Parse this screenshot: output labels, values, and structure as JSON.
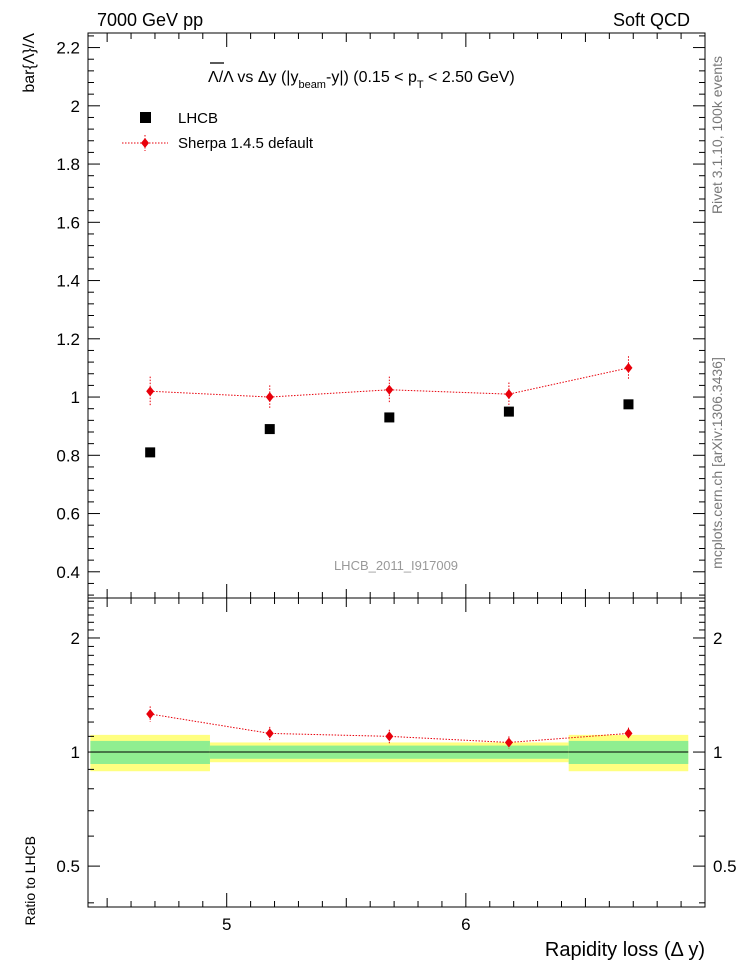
{
  "header": {
    "left": "7000 GeV pp",
    "right": "Soft QCD"
  },
  "side_labels": {
    "rivet": "Rivet 3.1.10,  100k events",
    "mcplots": "mcplots.cern.ch [arXiv:1306.3436]"
  },
  "watermark": "LHCB_2011_I917009",
  "title": {
    "prefix": "Λ/Λ vs Δy (|y",
    "sub1": "beam",
    "mid": "-y|) (0.15 < p",
    "sub2": "T",
    "suffix": " < 2.50 GeV)"
  },
  "colors": {
    "data": "#000000",
    "mc": "#e8000b",
    "band_inner": "#90ee90",
    "band_outer": "#ffff80"
  },
  "chart_data": [
    {
      "type": "scatter",
      "panel": "main",
      "ylabel": "bar{Λ}/Λ",
      "xlabel": "",
      "xlim": [
        4.42,
        7.0
      ],
      "ylim": [
        0.31,
        2.25
      ],
      "yticks": [
        0.4,
        0.6,
        0.8,
        1.0,
        1.2,
        1.4,
        1.6,
        1.8,
        2.0,
        2.2
      ],
      "yticklabels": [
        "0.4",
        "0.6",
        "0.8",
        "1",
        "1.2",
        "1.4",
        "1.6",
        "1.8",
        "2",
        "2.2"
      ],
      "legend_position": "top-left",
      "series": [
        {
          "name": "LHCB",
          "x": [
            4.68,
            5.18,
            5.68,
            6.18,
            6.68
          ],
          "y": [
            0.81,
            0.89,
            0.93,
            0.95,
            0.975
          ],
          "yerr": [
            0.01,
            0.01,
            0.01,
            0.01,
            0.01
          ],
          "marker": "square"
        },
        {
          "name": "Sherpa 1.4.5 default",
          "x": [
            4.68,
            5.18,
            5.68,
            6.18,
            6.68
          ],
          "y": [
            1.02,
            1.0,
            1.025,
            1.01,
            1.1
          ],
          "yerr": [
            0.05,
            0.04,
            0.045,
            0.04,
            0.04
          ],
          "marker": "diamond"
        }
      ]
    },
    {
      "type": "scatter",
      "panel": "ratio",
      "ylabel": "Ratio to LHCB",
      "xlabel": "Rapidity loss (Δ y)",
      "xlim": [
        4.42,
        7.0
      ],
      "yscale": "log",
      "ylim": [
        0.39,
        2.55
      ],
      "xticks": [
        5,
        6
      ],
      "xticklabels": [
        "5",
        "6"
      ],
      "yticks": [
        0.5,
        1,
        2
      ],
      "yticklabels": [
        "0.5",
        "1",
        "2"
      ],
      "bins": [
        [
          4.43,
          4.93
        ],
        [
          4.93,
          6.43
        ],
        [
          6.43,
          6.93
        ]
      ],
      "band_inner": [
        0.07,
        0.04,
        0.07
      ],
      "band_outer": [
        0.11,
        0.06,
        0.11
      ],
      "series": [
        {
          "name": "Sherpa 1.4.5 default",
          "x": [
            4.68,
            5.18,
            5.68,
            6.18,
            6.68
          ],
          "y": [
            1.26,
            1.12,
            1.1,
            1.06,
            1.12
          ],
          "yerr": [
            0.06,
            0.045,
            0.045,
            0.04,
            0.04
          ]
        }
      ]
    }
  ]
}
